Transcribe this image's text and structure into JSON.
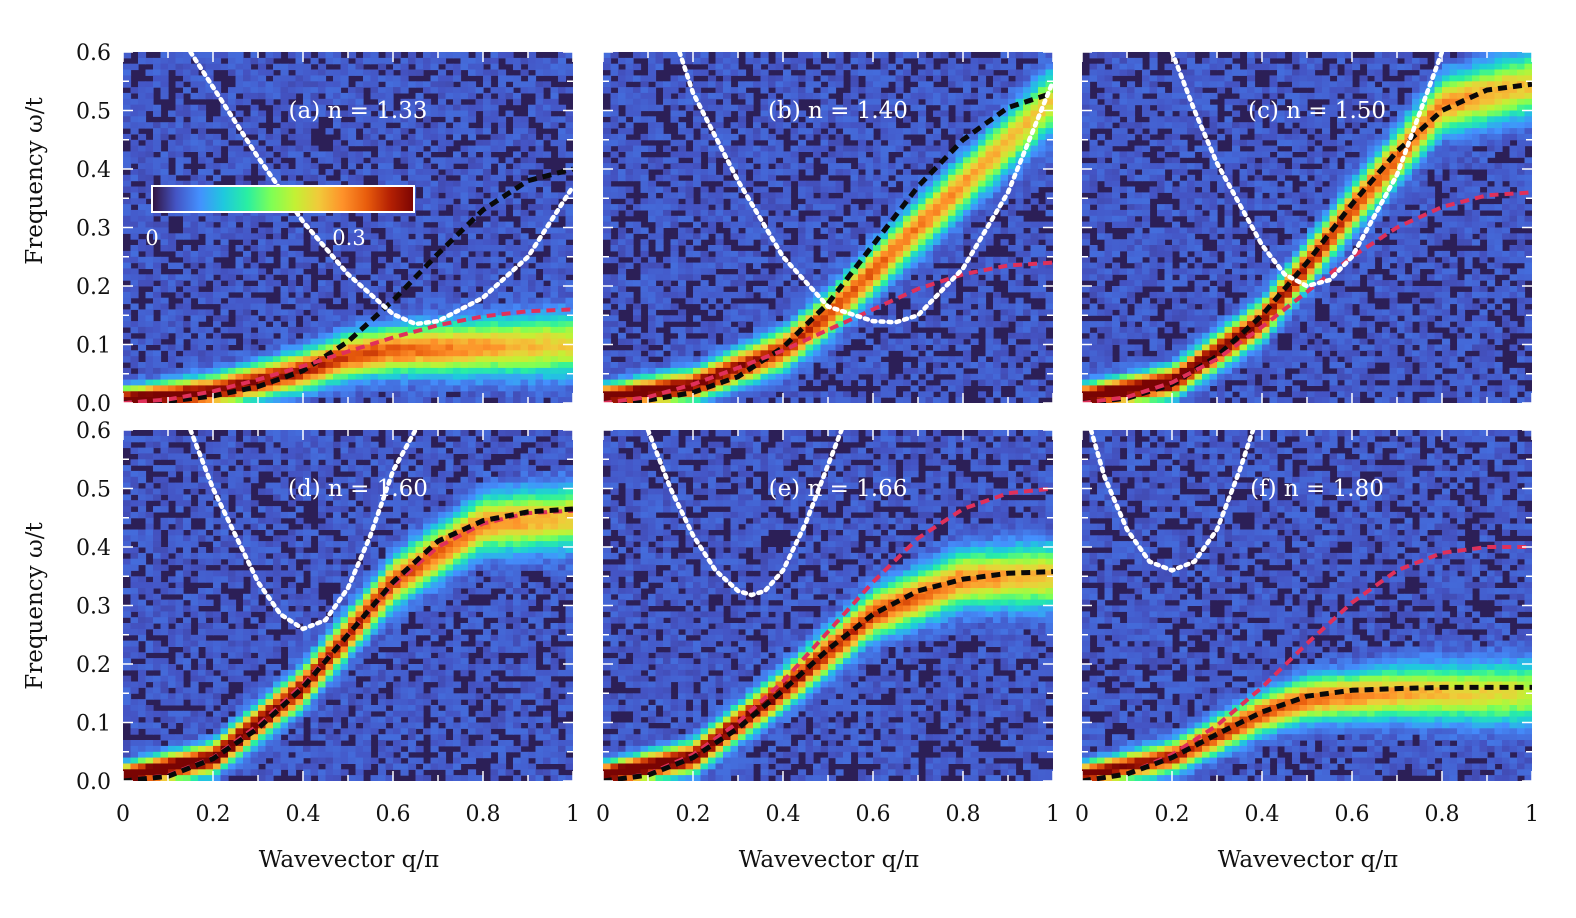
{
  "colors": {
    "background_map": "#2b1a52",
    "curve_black": "#0a0a0a",
    "curve_red": "#e0305a",
    "curve_white": "#ffffff",
    "colormap": [
      "#30123b",
      "#4454c4",
      "#4490fe",
      "#1fc8de",
      "#29efa2",
      "#7eff55",
      "#c3f134",
      "#f1ca3a",
      "#fe922a",
      "#e95d0d",
      "#b42003",
      "#7a0403"
    ]
  },
  "colorbar": {
    "min_label": "0",
    "max_label": "0.3",
    "range": [
      0,
      0.35
    ]
  },
  "axes": {
    "xlabel": "Wavevector q/π",
    "ylabel": "Frequency ω/t",
    "x_ticks": [
      "0",
      "0.2",
      "0.4",
      "0.6",
      "0.8",
      "1"
    ],
    "y_ticks": [
      "0.0",
      "0.1",
      "0.2",
      "0.3",
      "0.4",
      "0.5",
      "0.6"
    ]
  },
  "chart_data": [
    {
      "type": "heatmap",
      "panel_label": "(a) n = 1.33",
      "xlabel": "",
      "ylabel": "Frequency ω/t",
      "xlim": [
        0,
        1
      ],
      "ylim": [
        0,
        0.6
      ],
      "grid": false,
      "series": [
        {
          "style": "black-dashed",
          "x": [
            0,
            0.1,
            0.2,
            0.3,
            0.4,
            0.5,
            0.6,
            0.7,
            0.8,
            0.9,
            1.0
          ],
          "y": [
            0,
            0.003,
            0.012,
            0.028,
            0.055,
            0.105,
            0.175,
            0.255,
            0.33,
            0.38,
            0.4
          ]
        },
        {
          "style": "red-dashed",
          "x": [
            0,
            0.1,
            0.2,
            0.3,
            0.4,
            0.5,
            0.6,
            0.7,
            0.8,
            0.9,
            1.0
          ],
          "y": [
            0,
            0.006,
            0.02,
            0.04,
            0.063,
            0.088,
            0.112,
            0.133,
            0.148,
            0.157,
            0.16
          ]
        },
        {
          "style": "white-dotted",
          "x": [
            0.15,
            0.2,
            0.3,
            0.4,
            0.5,
            0.6,
            0.65,
            0.7,
            0.8,
            0.9,
            1.0
          ],
          "y": [
            0.6,
            0.54,
            0.42,
            0.31,
            0.22,
            0.152,
            0.135,
            0.14,
            0.18,
            0.25,
            0.37
          ]
        }
      ],
      "intensity_ridge": {
        "x": [
          0,
          0.2,
          0.4,
          0.5,
          0.6,
          1.0
        ],
        "y": [
          0.005,
          0.02,
          0.055,
          0.08,
          0.09,
          0.1
        ],
        "peak": 0.33
      }
    },
    {
      "type": "heatmap",
      "panel_label": "(b) n = 1.40",
      "xlabel": "",
      "ylabel": "",
      "xlim": [
        0,
        1
      ],
      "ylim": [
        0,
        0.6
      ],
      "grid": false,
      "series": [
        {
          "style": "black-dashed",
          "x": [
            0,
            0.1,
            0.2,
            0.3,
            0.4,
            0.5,
            0.6,
            0.7,
            0.8,
            0.9,
            1.0
          ],
          "y": [
            0,
            0.005,
            0.018,
            0.045,
            0.095,
            0.17,
            0.27,
            0.37,
            0.45,
            0.505,
            0.53
          ]
        },
        {
          "style": "red-dashed",
          "x": [
            0,
            0.1,
            0.2,
            0.3,
            0.4,
            0.5,
            0.6,
            0.7,
            0.8,
            0.9,
            1.0
          ],
          "y": [
            0,
            0.01,
            0.032,
            0.06,
            0.09,
            0.125,
            0.16,
            0.195,
            0.22,
            0.235,
            0.24
          ]
        },
        {
          "style": "white-dotted",
          "x": [
            0.17,
            0.2,
            0.3,
            0.4,
            0.5,
            0.6,
            0.65,
            0.7,
            0.8,
            0.9,
            1.0
          ],
          "y": [
            0.6,
            0.53,
            0.38,
            0.25,
            0.165,
            0.14,
            0.138,
            0.15,
            0.23,
            0.36,
            0.55
          ]
        }
      ],
      "intensity_ridge": {
        "x": [
          0,
          0.2,
          0.4,
          0.5,
          0.7,
          1.0
        ],
        "y": [
          0.01,
          0.03,
          0.09,
          0.15,
          0.3,
          0.52
        ],
        "peak": 0.33
      }
    },
    {
      "type": "heatmap",
      "panel_label": "(c) n = 1.50",
      "xlabel": "",
      "ylabel": "",
      "xlim": [
        0,
        1
      ],
      "ylim": [
        0,
        0.6
      ],
      "grid": false,
      "series": [
        {
          "style": "black-dashed",
          "x": [
            0,
            0.1,
            0.2,
            0.3,
            0.4,
            0.5,
            0.6,
            0.7,
            0.8,
            0.9,
            1.0
          ],
          "y": [
            0,
            0.008,
            0.032,
            0.08,
            0.15,
            0.24,
            0.34,
            0.43,
            0.5,
            0.535,
            0.545
          ]
        },
        {
          "style": "red-dashed",
          "x": [
            0,
            0.1,
            0.2,
            0.3,
            0.4,
            0.5,
            0.6,
            0.7,
            0.8,
            0.9,
            1.0
          ],
          "y": [
            0,
            0.01,
            0.035,
            0.075,
            0.13,
            0.19,
            0.25,
            0.3,
            0.335,
            0.355,
            0.36
          ]
        },
        {
          "style": "white-dotted",
          "x": [
            0.2,
            0.25,
            0.3,
            0.4,
            0.45,
            0.5,
            0.55,
            0.6,
            0.7,
            0.8
          ],
          "y": [
            0.6,
            0.5,
            0.41,
            0.27,
            0.22,
            0.2,
            0.21,
            0.25,
            0.39,
            0.6
          ]
        }
      ],
      "intensity_ridge": {
        "x": [
          0,
          0.2,
          0.4,
          0.6,
          0.8,
          1.0
        ],
        "y": [
          0.01,
          0.035,
          0.14,
          0.33,
          0.51,
          0.545
        ],
        "peak": 0.35
      }
    },
    {
      "type": "heatmap",
      "panel_label": "(d) n = 1.60",
      "xlabel": "Wavevector q/π",
      "ylabel": "Frequency ω/t",
      "xlim": [
        0,
        1
      ],
      "ylim": [
        0,
        0.6
      ],
      "grid": false,
      "series": [
        {
          "style": "red-dashed",
          "x": [
            0,
            0.1,
            0.2,
            0.3,
            0.4,
            0.5,
            0.6,
            0.7,
            0.8,
            0.9,
            1.0
          ],
          "y": [
            0,
            0.01,
            0.04,
            0.095,
            0.165,
            0.25,
            0.335,
            0.4,
            0.44,
            0.458,
            0.462
          ]
        },
        {
          "style": "black-dashed",
          "x": [
            0,
            0.1,
            0.2,
            0.3,
            0.4,
            0.5,
            0.6,
            0.7,
            0.8,
            0.9,
            1.0
          ],
          "y": [
            0,
            0.008,
            0.038,
            0.09,
            0.16,
            0.25,
            0.34,
            0.41,
            0.445,
            0.46,
            0.465
          ]
        },
        {
          "style": "white-dotted",
          "x": [
            0.15,
            0.2,
            0.3,
            0.35,
            0.4,
            0.45,
            0.5,
            0.55,
            0.6,
            0.65
          ],
          "y": [
            0.6,
            0.5,
            0.34,
            0.285,
            0.26,
            0.275,
            0.33,
            0.42,
            0.53,
            0.6
          ]
        }
      ],
      "intensity_ridge": {
        "x": [
          0,
          0.2,
          0.4,
          0.6,
          0.8,
          1.0
        ],
        "y": [
          0.008,
          0.038,
          0.16,
          0.34,
          0.44,
          0.45
        ],
        "peak": 0.35
      }
    },
    {
      "type": "heatmap",
      "panel_label": "(e) n = 1.66",
      "xlabel": "Wavevector q/π",
      "ylabel": "",
      "xlim": [
        0,
        1
      ],
      "ylim": [
        0,
        0.6
      ],
      "grid": false,
      "series": [
        {
          "style": "red-dashed",
          "x": [
            0,
            0.1,
            0.2,
            0.3,
            0.4,
            0.5,
            0.6,
            0.7,
            0.8,
            0.9,
            1.0
          ],
          "y": [
            0,
            0.012,
            0.045,
            0.1,
            0.17,
            0.255,
            0.34,
            0.415,
            0.465,
            0.492,
            0.5
          ]
        },
        {
          "style": "black-dashed",
          "x": [
            0,
            0.1,
            0.2,
            0.3,
            0.4,
            0.5,
            0.6,
            0.7,
            0.8,
            0.9,
            1.0
          ],
          "y": [
            0,
            0.01,
            0.04,
            0.09,
            0.155,
            0.225,
            0.285,
            0.325,
            0.345,
            0.355,
            0.358
          ]
        },
        {
          "style": "white-dotted",
          "x": [
            0.1,
            0.15,
            0.2,
            0.25,
            0.3,
            0.33,
            0.36,
            0.4,
            0.45,
            0.5,
            0.53
          ],
          "y": [
            0.6,
            0.5,
            0.42,
            0.36,
            0.325,
            0.318,
            0.325,
            0.36,
            0.44,
            0.54,
            0.6
          ]
        }
      ],
      "intensity_ridge": {
        "x": [
          0,
          0.2,
          0.4,
          0.6,
          0.8,
          1.0
        ],
        "y": [
          0.01,
          0.04,
          0.155,
          0.285,
          0.345,
          0.35
        ],
        "peak": 0.35
      }
    },
    {
      "type": "heatmap",
      "panel_label": "(f) n = 1.80",
      "xlabel": "Wavevector q/π",
      "ylabel": "",
      "xlim": [
        0,
        1
      ],
      "ylim": [
        0,
        0.6
      ],
      "grid": false,
      "series": [
        {
          "style": "red-dashed",
          "x": [
            0,
            0.1,
            0.2,
            0.3,
            0.4,
            0.5,
            0.6,
            0.7,
            0.8,
            0.9,
            1.0
          ],
          "y": [
            0,
            0.012,
            0.045,
            0.095,
            0.16,
            0.235,
            0.305,
            0.36,
            0.39,
            0.4,
            0.4
          ]
        },
        {
          "style": "black-dashed",
          "x": [
            0,
            0.1,
            0.2,
            0.3,
            0.4,
            0.5,
            0.6,
            0.7,
            0.8,
            0.9,
            1.0
          ],
          "y": [
            0,
            0.012,
            0.04,
            0.08,
            0.118,
            0.145,
            0.155,
            0.158,
            0.16,
            0.16,
            0.16
          ]
        },
        {
          "style": "white-dotted",
          "x": [
            0.02,
            0.05,
            0.1,
            0.15,
            0.2,
            0.25,
            0.3,
            0.35,
            0.38
          ],
          "y": [
            0.6,
            0.52,
            0.43,
            0.375,
            0.36,
            0.375,
            0.43,
            0.53,
            0.6
          ]
        }
      ],
      "intensity_ridge": {
        "x": [
          0,
          0.2,
          0.4,
          0.5,
          0.7,
          1.0
        ],
        "y": [
          0.01,
          0.04,
          0.115,
          0.14,
          0.15,
          0.15
        ],
        "peak": 0.3
      }
    }
  ]
}
